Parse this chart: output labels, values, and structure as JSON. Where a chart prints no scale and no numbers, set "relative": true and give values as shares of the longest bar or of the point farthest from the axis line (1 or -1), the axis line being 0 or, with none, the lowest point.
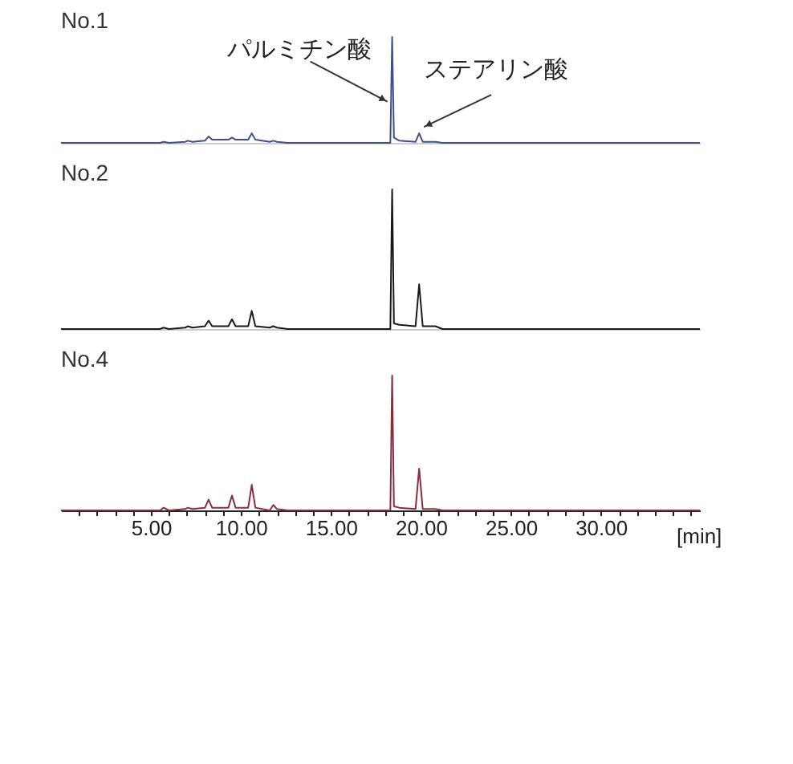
{
  "chart_data": [
    {
      "type": "line",
      "title": "No.1",
      "relative": true,
      "xlim": [
        0,
        35.5
      ],
      "tick_labels": false,
      "x": [
        0,
        5.5,
        5.7,
        6,
        6.9,
        7.05,
        7.3,
        8.0,
        8.2,
        8.4,
        9.3,
        9.5,
        9.7,
        10.4,
        10.6,
        10.8,
        11.6,
        11.8,
        12.0,
        12.6,
        17.9,
        18.3,
        18.4,
        18.5,
        18.8,
        19.7,
        19.9,
        20.1,
        20.8,
        21.2,
        35.5
      ],
      "series": [
        {
          "color": "#3d4f8f",
          "values": [
            0,
            0,
            0.01,
            0,
            0.01,
            0.02,
            0.01,
            0.02,
            0.06,
            0.03,
            0.03,
            0.05,
            0.03,
            0.03,
            0.09,
            0.03,
            0.01,
            0.02,
            0.01,
            0,
            0,
            0,
            1,
            0.05,
            0.02,
            0.01,
            0.09,
            0.01,
            0.01,
            0,
            0
          ]
        }
      ],
      "annotations": [
        {
          "text": "パルミチン酸",
          "x": 18.4,
          "y": 0.39
        },
        {
          "text": "ステアリン酸",
          "x": 19.9,
          "y": 0.09
        }
      ]
    },
    {
      "type": "line",
      "title": "No.2",
      "relative": true,
      "xlim": [
        0,
        35.5
      ],
      "tick_labels": false,
      "x": [
        0,
        5.5,
        5.7,
        6,
        6.9,
        7.05,
        7.3,
        8.0,
        8.2,
        8.4,
        9.3,
        9.5,
        9.7,
        10.4,
        10.6,
        10.8,
        11.6,
        11.8,
        12.0,
        12.6,
        17.9,
        18.3,
        18.4,
        18.5,
        18.8,
        19.7,
        19.9,
        20.1,
        20.8,
        21.2,
        35.5
      ],
      "series": [
        {
          "color": "#1a1a1a",
          "values": [
            0,
            0,
            0.01,
            0,
            0.01,
            0.02,
            0.01,
            0.02,
            0.06,
            0.02,
            0.02,
            0.07,
            0.02,
            0.02,
            0.13,
            0.02,
            0.01,
            0.02,
            0.01,
            0,
            0,
            0,
            1,
            0.04,
            0.03,
            0.02,
            0.32,
            0.02,
            0.02,
            0,
            0
          ]
        }
      ]
    },
    {
      "type": "line",
      "title": "No.4",
      "relative": true,
      "xlim": [
        0,
        35.5
      ],
      "tick_labels": "x",
      "xlabel": "[min]",
      "xticks": [
        {
          "value": 1,
          "label": null
        },
        {
          "value": 2,
          "label": null
        },
        {
          "value": 3,
          "label": null
        },
        {
          "value": 4,
          "label": null
        },
        {
          "value": 5,
          "label": "5.00"
        },
        {
          "value": 6,
          "label": null
        },
        {
          "value": 7,
          "label": null
        },
        {
          "value": 8,
          "label": null
        },
        {
          "value": 9,
          "label": null
        },
        {
          "value": 10,
          "label": "10.00"
        },
        {
          "value": 11,
          "label": null
        },
        {
          "value": 12,
          "label": null
        },
        {
          "value": 13,
          "label": null
        },
        {
          "value": 14,
          "label": null
        },
        {
          "value": 15,
          "label": "15.00"
        },
        {
          "value": 16,
          "label": null
        },
        {
          "value": 17,
          "label": null
        },
        {
          "value": 18,
          "label": null
        },
        {
          "value": 19,
          "label": null
        },
        {
          "value": 20,
          "label": "20.00"
        },
        {
          "value": 21,
          "label": null
        },
        {
          "value": 22,
          "label": null
        },
        {
          "value": 23,
          "label": null
        },
        {
          "value": 24,
          "label": null
        },
        {
          "value": 25,
          "label": "25.00"
        },
        {
          "value": 26,
          "label": null
        },
        {
          "value": 27,
          "label": null
        },
        {
          "value": 28,
          "label": null
        },
        {
          "value": 29,
          "label": null
        },
        {
          "value": 30,
          "label": "30.00"
        },
        {
          "value": 31,
          "label": null
        },
        {
          "value": 32,
          "label": null
        },
        {
          "value": 33,
          "label": null
        },
        {
          "value": 34,
          "label": null
        },
        {
          "value": 35,
          "label": null
        }
      ],
      "x": [
        0,
        5.5,
        5.7,
        6,
        6.9,
        7.05,
        7.3,
        8.0,
        8.2,
        8.4,
        9.3,
        9.5,
        9.7,
        10.4,
        10.6,
        10.8,
        11.6,
        11.8,
        12.0,
        12.6,
        17.9,
        18.3,
        18.4,
        18.5,
        18.8,
        19.7,
        19.9,
        20.1,
        20.8,
        21.2,
        35.5
      ],
      "series": [
        {
          "color": "#8b2e3a",
          "values": [
            0,
            0,
            0.02,
            0,
            0.01,
            0.02,
            0.01,
            0.02,
            0.08,
            0.02,
            0.02,
            0.11,
            0.02,
            0.02,
            0.19,
            0.02,
            0,
            0.04,
            0.01,
            0,
            0,
            0,
            1,
            0.03,
            0.02,
            0.01,
            0.31,
            0.01,
            0.01,
            0,
            0
          ]
        }
      ]
    }
  ]
}
